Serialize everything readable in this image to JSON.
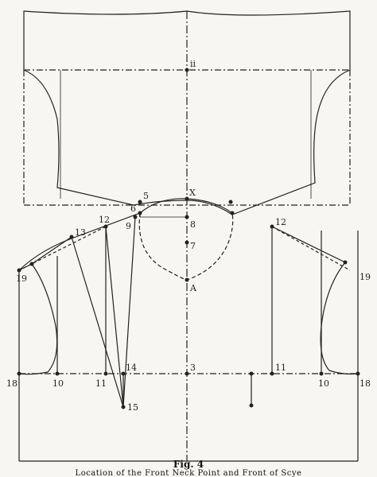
{
  "caption": {
    "title": "Fig. 4",
    "subtitle": "Location of the Front Neck Point and Front of Scye"
  },
  "labels": {
    "p_ii": "ii",
    "p5": "5",
    "p6": "6",
    "pX": "X",
    "p8": "8",
    "p7": "7",
    "pA": "A",
    "p9": "9",
    "p12_left": "12",
    "p13": "13",
    "p19_left": "19",
    "p12_right": "12",
    "p19_right": "19",
    "p18_left": "18",
    "p10_left": "10",
    "p11_left": "11",
    "p14": "14",
    "p3": "3",
    "p11_right": "11",
    "p10_right": "10",
    "p18_right": "18",
    "p15": "15"
  },
  "colors": {
    "ink": "#222222",
    "paper": "#f7f6f2"
  }
}
